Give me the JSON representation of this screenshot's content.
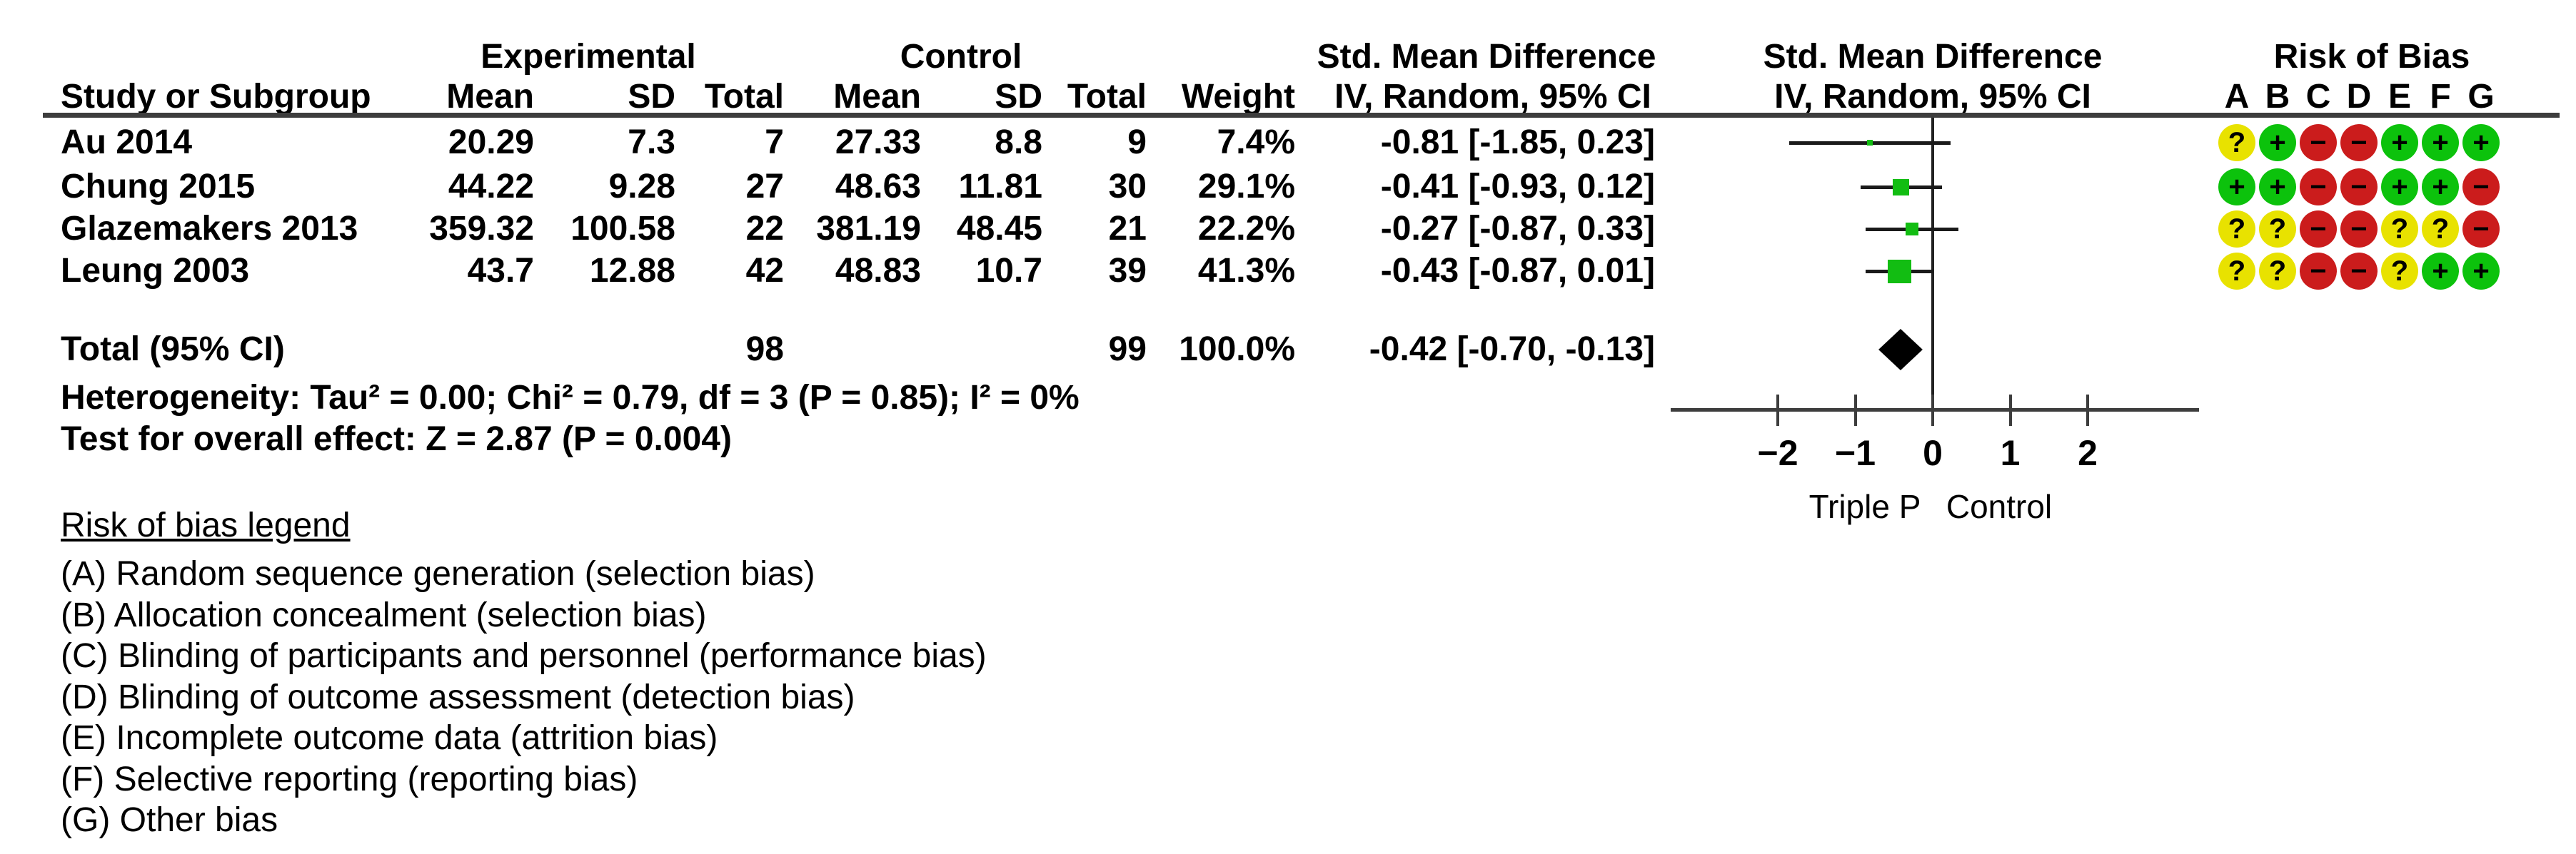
{
  "header": {
    "experimental": "Experimental",
    "control": "Control",
    "smd_text": "Std. Mean Difference",
    "smd_plot": "Std. Mean Difference",
    "rob": "Risk of Bias",
    "study_col": "Study or Subgroup",
    "mean": "Mean",
    "sd": "SD",
    "total": "Total",
    "weight": "Weight",
    "iv_text": "IV, Random, 95% CI",
    "iv_plot": "IV, Random, 95% CI",
    "rob_letters": [
      "A",
      "B",
      "C",
      "D",
      "E",
      "F",
      "G"
    ]
  },
  "table": {
    "rows": [
      {
        "study": "Au 2014",
        "exp_mean": "20.29",
        "exp_sd": "7.3",
        "exp_total": "7",
        "ctrl_mean": "27.33",
        "ctrl_sd": "8.8",
        "ctrl_total": "9",
        "weight": "7.4%",
        "ci_text": "-0.81 [-1.85, 0.23]",
        "risk": [
          "?",
          "+",
          "-",
          "-",
          "+",
          "+",
          "+"
        ]
      },
      {
        "study": "Chung 2015",
        "exp_mean": "44.22",
        "exp_sd": "9.28",
        "exp_total": "27",
        "ctrl_mean": "48.63",
        "ctrl_sd": "11.81",
        "ctrl_total": "30",
        "weight": "29.1%",
        "ci_text": "-0.41 [-0.93, 0.12]",
        "risk": [
          "+",
          "+",
          "-",
          "-",
          "+",
          "+",
          "-"
        ]
      },
      {
        "study": "Glazemakers 2013",
        "exp_mean": "359.32",
        "exp_sd": "100.58",
        "exp_total": "22",
        "ctrl_mean": "381.19",
        "ctrl_sd": "48.45",
        "ctrl_total": "21",
        "weight": "22.2%",
        "ci_text": "-0.27 [-0.87, 0.33]",
        "risk": [
          "?",
          "?",
          "-",
          "-",
          "?",
          "?",
          "-"
        ]
      },
      {
        "study": "Leung 2003",
        "exp_mean": "43.7",
        "exp_sd": "12.88",
        "exp_total": "42",
        "ctrl_mean": "48.83",
        "ctrl_sd": "10.7",
        "ctrl_total": "39",
        "weight": "41.3%",
        "ci_text": "-0.43 [-0.87, 0.01]",
        "risk": [
          "?",
          "?",
          "-",
          "-",
          "?",
          "+",
          "+"
        ]
      }
    ],
    "total": {
      "label": "Total (95% CI)",
      "exp_total": "98",
      "ctrl_total": "99",
      "weight": "100.0%",
      "ci_text": "-0.42 [-0.70, -0.13]"
    },
    "heterogeneity": "Heterogeneity: Tau² = 0.00; Chi² = 0.79, df = 3 (P = 0.85); I² = 0%",
    "overall_effect": "Test for overall effect: Z = 2.87 (P = 0.004)"
  },
  "chart_data": {
    "type": "forest",
    "title": "Std. Mean Difference",
    "method": "IV, Random, 95% CI",
    "xticks": [
      -2,
      -1,
      0,
      1,
      2
    ],
    "xlim": [
      -3.4,
      3.4
    ],
    "xlabel_left": "Triple P",
    "xlabel_right": "Control",
    "studies": [
      {
        "label": "Au 2014",
        "smd": -0.81,
        "ci_low": -1.85,
        "ci_high": 0.23,
        "weight_pct": 7.4
      },
      {
        "label": "Chung 2015",
        "smd": -0.41,
        "ci_low": -0.93,
        "ci_high": 0.12,
        "weight_pct": 29.1
      },
      {
        "label": "Glazemakers 2013",
        "smd": -0.27,
        "ci_low": -0.87,
        "ci_high": 0.33,
        "weight_pct": 22.2
      },
      {
        "label": "Leung 2003",
        "smd": -0.43,
        "ci_low": -0.87,
        "ci_high": 0.01,
        "weight_pct": 41.3
      }
    ],
    "total": {
      "label": "Total (95% CI)",
      "smd": -0.42,
      "ci_low": -0.7,
      "ci_high": -0.13
    }
  },
  "colors": {
    "marker_green": "#12bd12",
    "diamond": "#000000",
    "risk_low": "#0cc20c",
    "risk_high": "#cb1c1c",
    "risk_unclear": "#e8e200",
    "line": "#3d3d3d"
  },
  "legend": {
    "title": "Risk of bias legend",
    "items": [
      "(A) Random sequence generation (selection bias)",
      "(B) Allocation concealment (selection bias)",
      "(C) Blinding of participants and personnel (performance bias)",
      "(D) Blinding of outcome assessment (detection bias)",
      "(E) Incomplete outcome data (attrition bias)",
      "(F) Selective reporting (reporting bias)",
      "(G) Other bias"
    ]
  }
}
